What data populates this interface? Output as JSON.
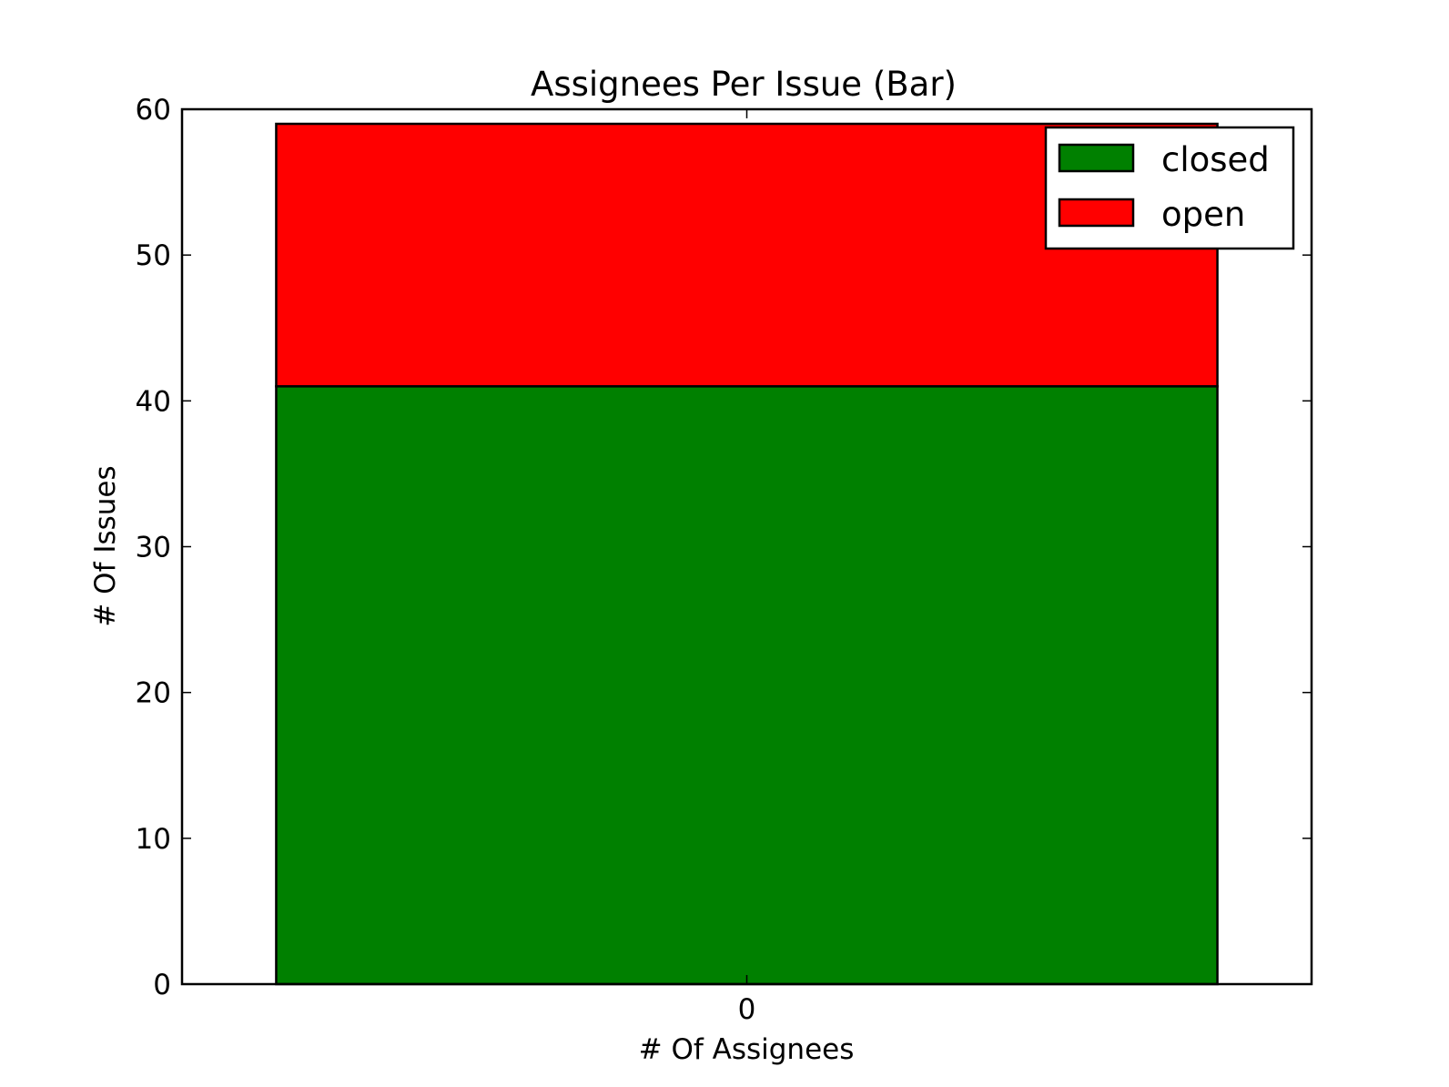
{
  "chart_data": {
    "type": "bar",
    "stacked": true,
    "title": "Assignees Per Issue (Bar)",
    "xlabel": "# Of Assignees",
    "ylabel": "# Of Issues",
    "categories": [
      "0"
    ],
    "series": [
      {
        "name": "closed",
        "values": [
          41
        ],
        "color": "#008000"
      },
      {
        "name": "open",
        "values": [
          18
        ],
        "color": "#ff0000"
      }
    ],
    "ylim": [
      0,
      60
    ],
    "yticks": [
      "0",
      "10",
      "20",
      "30",
      "40",
      "50",
      "60"
    ],
    "grid": false,
    "legend_position": "top-right"
  }
}
